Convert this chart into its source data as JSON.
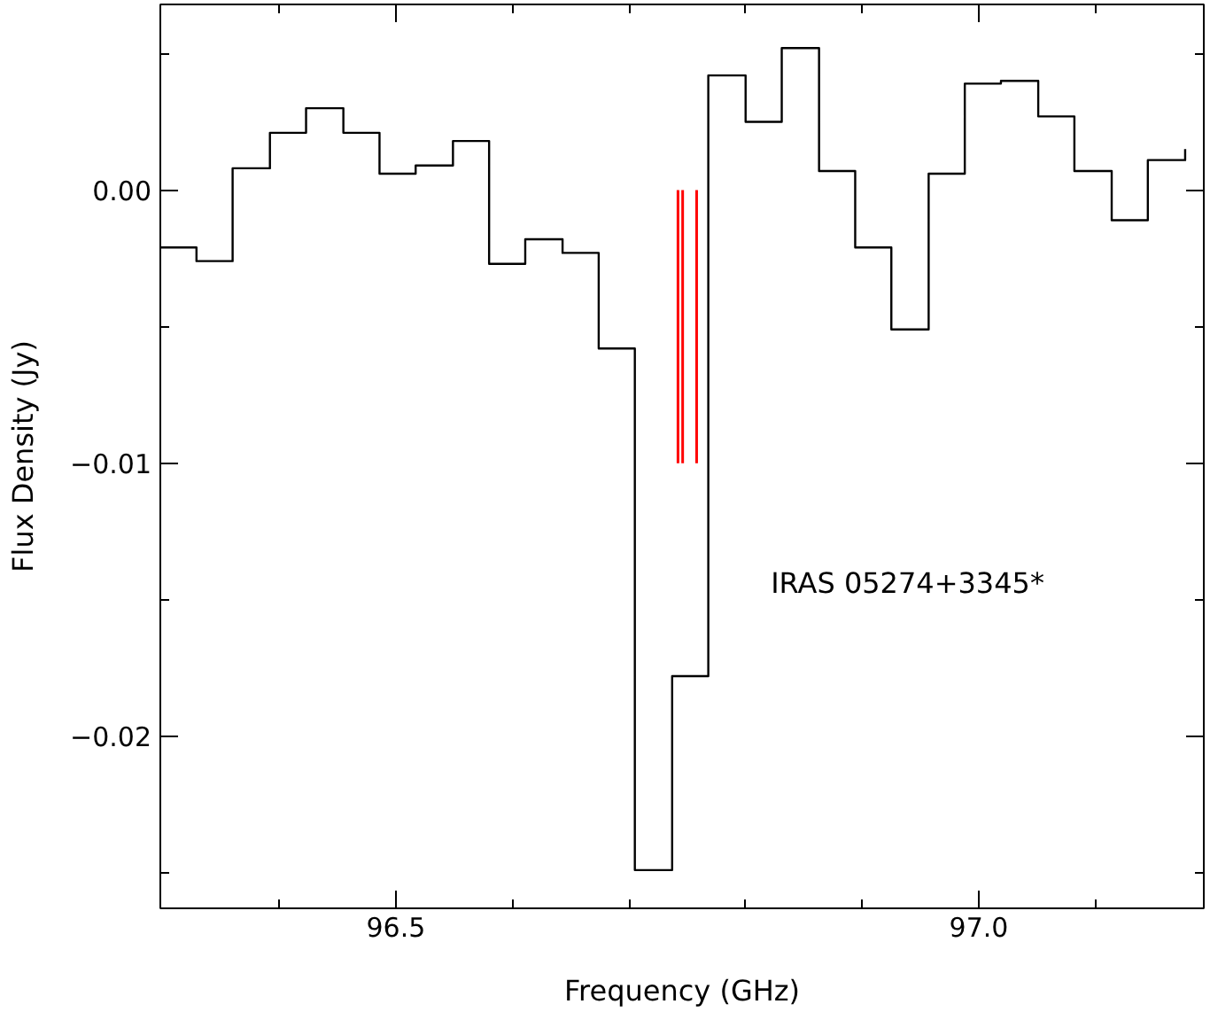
{
  "chart_data": {
    "type": "step",
    "xlabel": "Frequency (GHz)",
    "ylabel": "Flux Density (Jy)",
    "x": [
      96.298,
      96.329,
      96.36,
      96.392,
      96.423,
      96.455,
      96.486,
      96.517,
      96.549,
      96.58,
      96.611,
      96.643,
      96.674,
      96.705,
      96.737,
      96.768,
      96.8,
      96.831,
      96.863,
      96.894,
      96.925,
      96.957,
      96.988,
      97.019,
      97.051,
      97.082,
      97.114,
      97.145,
      97.177
    ],
    "series": [
      {
        "color": "#000000",
        "values": [
          -0.0021,
          -0.0026,
          0.0008,
          0.0021,
          0.003,
          0.0021,
          0.0006,
          0.0009,
          0.0018,
          -0.0027,
          -0.0018,
          -0.0023,
          -0.0058,
          -0.0249,
          -0.0178,
          0.0042,
          0.0025,
          0.0052,
          0.0007,
          -0.0021,
          -0.0051,
          0.0006,
          0.0039,
          0.004,
          0.0027,
          0.0007,
          -0.0011,
          0.0011,
          0.0015
        ]
      },
      {
        "type": "line",
        "color": "#ff0000",
        "x": [
          96.742,
          96.742
        ],
        "values": [
          0,
          -0.01
        ]
      },
      {
        "type": "line",
        "color": "#ff0000",
        "x": [
          96.746,
          96.746
        ],
        "values": [
          0,
          -0.01
        ]
      },
      {
        "type": "line",
        "color": "#ff0000",
        "x": [
          96.758,
          96.758
        ],
        "values": [
          0,
          -0.01
        ]
      }
    ],
    "xlim": [
      96.298,
      97.193
    ],
    "ylim": [
      -0.0263,
      0.0068
    ],
    "xticks": [
      {
        "value": 96.4,
        "label": null
      },
      {
        "value": 96.5,
        "label": "96.5"
      },
      {
        "value": 96.6,
        "label": null
      },
      {
        "value": 96.7,
        "label": null
      },
      {
        "value": 96.8,
        "label": null
      },
      {
        "value": 96.9,
        "label": null
      },
      {
        "value": 97.0,
        "label": "97.0"
      },
      {
        "value": 97.1,
        "label": null
      }
    ],
    "yticks": [
      {
        "value": 0.005,
        "label": null
      },
      {
        "value": 0.0,
        "label": "0.00"
      },
      {
        "value": -0.005,
        "label": null
      },
      {
        "value": -0.01,
        "label": "−0.01"
      },
      {
        "value": -0.015,
        "label": null
      },
      {
        "value": -0.02,
        "label": "−0.02"
      },
      {
        "value": -0.025,
        "label": null
      }
    ],
    "annotations": [
      "IRAS 05274+3345*"
    ],
    "grid": false
  }
}
